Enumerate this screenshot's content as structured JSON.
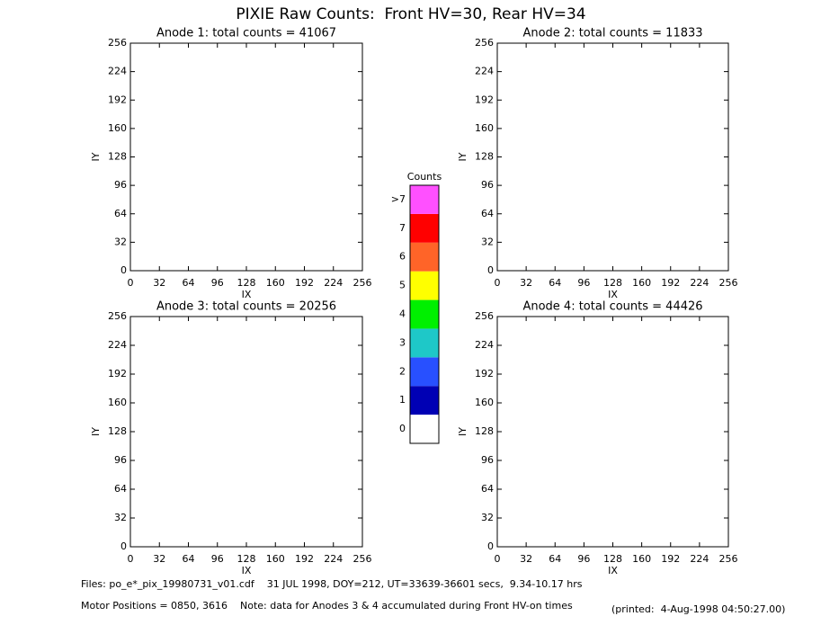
{
  "title": "PIXIE Raw Counts:  Front HV=30, Rear HV=34",
  "chart_data": [
    {
      "type": "heatmap",
      "title": "Anode 1: total counts = 41067",
      "xlabel": "IX",
      "ylabel": "IY",
      "xlim": [
        0,
        256
      ],
      "ylim": [
        0,
        256
      ],
      "xticks": [
        0,
        32,
        64,
        96,
        128,
        160,
        192,
        224,
        256
      ],
      "yticks": [
        0,
        32,
        64,
        96,
        128,
        160,
        192,
        224,
        256
      ]
    },
    {
      "type": "heatmap",
      "title": "Anode 2: total counts = 11833",
      "xlabel": "IX",
      "ylabel": "IY",
      "xlim": [
        0,
        256
      ],
      "ylim": [
        0,
        256
      ],
      "xticks": [
        0,
        32,
        64,
        96,
        128,
        160,
        192,
        224,
        256
      ],
      "yticks": [
        0,
        32,
        64,
        96,
        128,
        160,
        192,
        224,
        256
      ]
    },
    {
      "type": "heatmap",
      "title": "Anode 3: total counts = 20256",
      "xlabel": "IX",
      "ylabel": "IY",
      "xlim": [
        0,
        256
      ],
      "ylim": [
        0,
        256
      ],
      "xticks": [
        0,
        32,
        64,
        96,
        128,
        160,
        192,
        224,
        256
      ],
      "yticks": [
        0,
        32,
        64,
        96,
        128,
        160,
        192,
        224,
        256
      ]
    },
    {
      "type": "heatmap",
      "title": "Anode 4: total counts = 44426",
      "xlabel": "IX",
      "ylabel": "IY",
      "xlim": [
        0,
        256
      ],
      "ylim": [
        0,
        256
      ],
      "xticks": [
        0,
        32,
        64,
        96,
        128,
        160,
        192,
        224,
        256
      ],
      "yticks": [
        0,
        32,
        64,
        96,
        128,
        160,
        192,
        224,
        256
      ]
    }
  ],
  "colorbar": {
    "title": "Counts",
    "labels": [
      "0",
      "1",
      "2",
      "3",
      "4",
      "5",
      "6",
      "7",
      ">7"
    ],
    "colors": [
      "#ffffff",
      "#0000b4",
      "#2850ff",
      "#1ec8c8",
      "#00f000",
      "#ffff00",
      "#ff6428",
      "#ff0000",
      "#ff50ff"
    ]
  },
  "footer": {
    "files": "Files: po_e*_pix_19980731_v01.cdf    31 JUL 1998, DOY=212, UT=33639-36601 secs,  9.34-10.17 hrs",
    "motor": "Motor Positions = 0850, 3616    Note: data for Anodes 3 & 4 accumulated during Front HV-on times",
    "printed": "(printed:  4-Aug-1998 04:50:27.00)"
  }
}
